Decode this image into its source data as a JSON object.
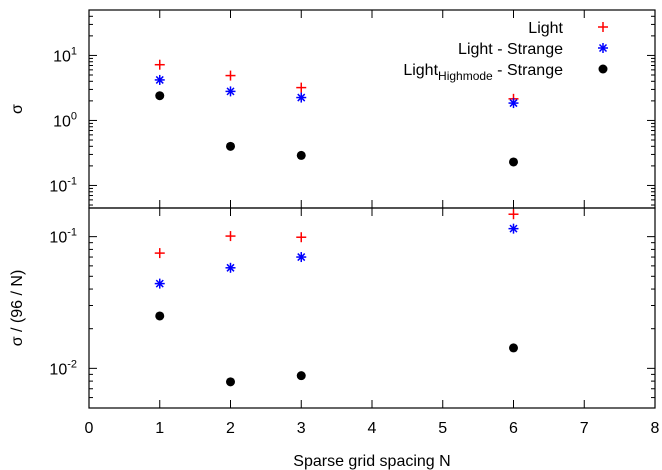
{
  "chart_data": [
    {
      "type": "scatter",
      "panel": "top",
      "xlabel": "",
      "ylabel": "σ",
      "yscale": "log",
      "ylim": [
        0.045,
        50
      ],
      "xlim": [
        0,
        8
      ],
      "x_tick_labels_shown": false,
      "y_ticks": [
        {
          "value": 0.1,
          "base": "10",
          "exp": "-1"
        },
        {
          "value": 1,
          "base": "10",
          "exp": "0"
        },
        {
          "value": 10,
          "base": "10",
          "exp": "1"
        }
      ],
      "legend": {
        "placement": "top-right",
        "entries": [
          {
            "text": "Light",
            "series": 0
          },
          {
            "text": "Light - Strange",
            "series": 1
          },
          {
            "main": "Light",
            "sub": "Highmode",
            "tail": " - Strange",
            "series": 2
          }
        ]
      },
      "series": [
        {
          "name": "Light",
          "marker": "plus",
          "color": "#ff0000",
          "x": [
            1,
            2,
            3,
            6
          ],
          "y": [
            7.2,
            4.9,
            3.2,
            2.15
          ]
        },
        {
          "name": "Light - Strange",
          "marker": "star",
          "color": "#0000ff",
          "x": [
            1,
            2,
            3,
            6
          ],
          "y": [
            4.2,
            2.8,
            2.25,
            1.85
          ]
        },
        {
          "name": "Light_Highmode - Strange",
          "marker": "dot",
          "color": "#000000",
          "x": [
            1,
            2,
            3,
            6
          ],
          "y": [
            2.4,
            0.4,
            0.29,
            0.23
          ]
        }
      ]
    },
    {
      "type": "scatter",
      "panel": "bottom",
      "xlabel": "Sparse grid spacing N",
      "ylabel": "σ / (96 / N)",
      "yscale": "log",
      "ylim": [
        0.005,
        0.165
      ],
      "xlim": [
        0,
        8
      ],
      "x_ticks": [
        0,
        1,
        2,
        3,
        4,
        5,
        6,
        7,
        8
      ],
      "y_ticks": [
        {
          "value": 0.01,
          "base": "10",
          "exp": "-2"
        },
        {
          "value": 0.1,
          "base": "10",
          "exp": "-1"
        }
      ],
      "series": [
        {
          "name": "Light",
          "marker": "plus",
          "color": "#ff0000",
          "x": [
            1,
            2,
            3,
            6
          ],
          "y": [
            0.075,
            0.101,
            0.099,
            0.148
          ]
        },
        {
          "name": "Light - Strange",
          "marker": "star",
          "color": "#0000ff",
          "x": [
            1,
            2,
            3,
            6
          ],
          "y": [
            0.044,
            0.058,
            0.07,
            0.115
          ]
        },
        {
          "name": "Light_Highmode - Strange",
          "marker": "dot",
          "color": "#000000",
          "x": [
            1,
            2,
            3,
            6
          ],
          "y": [
            0.025,
            0.0079,
            0.0088,
            0.0143
          ]
        }
      ]
    }
  ]
}
